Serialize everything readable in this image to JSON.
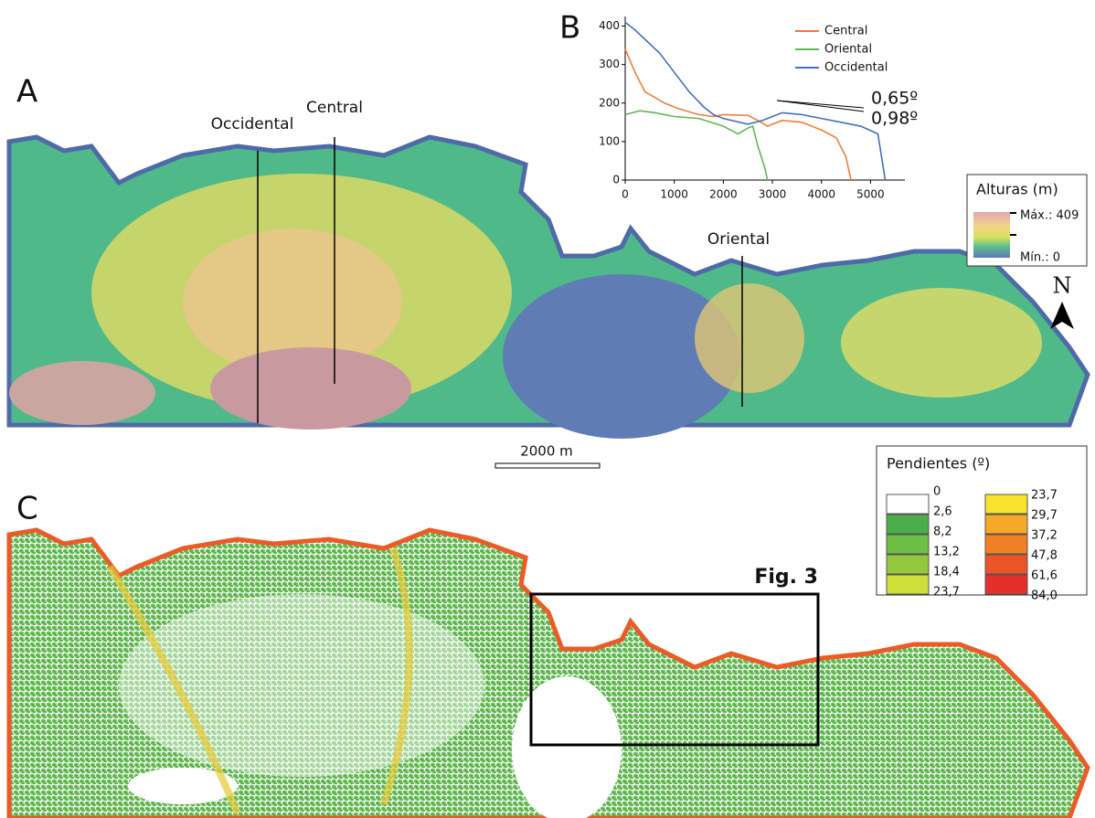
{
  "panels": {
    "a": "A",
    "b": "B",
    "c": "C"
  },
  "profile_labels": {
    "occidental": "Occidental",
    "central": "Central",
    "oriental": "Oriental"
  },
  "scale_bar": "2000 m",
  "north": "N",
  "fig_ref": "Fig. 3",
  "elevation_legend": {
    "title": "Alturas (m)",
    "max": "Máx.: 409",
    "min": "Mín.: 0"
  },
  "slope_legend": {
    "title": "Pendientes (º)",
    "breaks": [
      "0",
      "2,6",
      "8,2",
      "13,2",
      "18,4",
      "23,7",
      "23,7",
      "29,7",
      "37,2",
      "47,8",
      "61,6",
      "84,0"
    ],
    "colors": [
      "#ffffff",
      "#4aae4a",
      "#6dbf45",
      "#93c83e",
      "#cfdf3a",
      "#f8e22c",
      "#f6a828",
      "#f17f25",
      "#eb5427",
      "#e3302b"
    ]
  },
  "chart_data": {
    "type": "line",
    "xlim": [
      0,
      5700
    ],
    "ylim": [
      0,
      425
    ],
    "xticks": [
      0,
      1000,
      2000,
      3000,
      4000,
      5000
    ],
    "yticks": [
      0,
      100,
      200,
      300,
      400
    ],
    "annotations": [
      "0,65º",
      "0,98º"
    ],
    "series": [
      {
        "name": "Central",
        "color": "#ee7d3b",
        "x": [
          0,
          200,
          400,
          800,
          1100,
          1500,
          1800,
          2000,
          2500,
          2700,
          2900,
          3200,
          3600,
          4000,
          4300,
          4500,
          4600
        ],
        "values": [
          340,
          280,
          230,
          200,
          185,
          170,
          165,
          170,
          168,
          155,
          140,
          155,
          150,
          130,
          110,
          60,
          0
        ]
      },
      {
        "name": "Oriental",
        "color": "#63b559",
        "x": [
          0,
          300,
          600,
          1000,
          1500,
          2000,
          2300,
          2500,
          2600,
          2700,
          2850,
          2900
        ],
        "values": [
          170,
          180,
          175,
          165,
          160,
          140,
          120,
          135,
          140,
          90,
          30,
          0
        ]
      },
      {
        "name": "Occidental",
        "color": "#4470b8",
        "x": [
          0,
          200,
          700,
          1000,
          1300,
          1600,
          1800,
          2000,
          2500,
          2800,
          3200,
          3600,
          4000,
          4400,
          4800,
          5150,
          5300
        ],
        "values": [
          410,
          390,
          330,
          280,
          230,
          190,
          170,
          160,
          145,
          155,
          175,
          170,
          160,
          150,
          140,
          120,
          0
        ]
      }
    ]
  }
}
